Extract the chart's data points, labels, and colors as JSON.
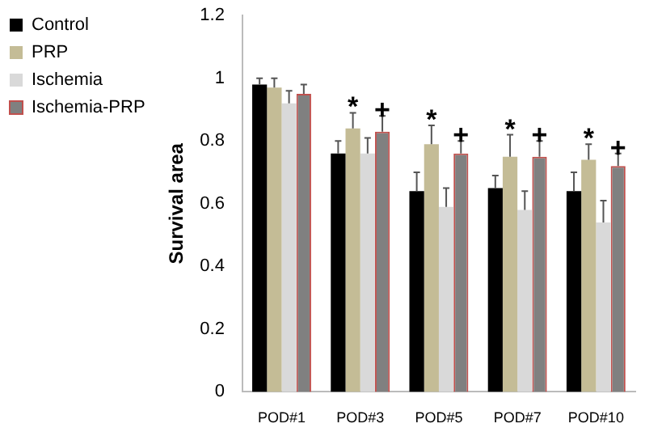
{
  "chart_data": {
    "type": "bar",
    "ylabel": "Survival area",
    "categories": [
      "POD#1",
      "POD#3",
      "POD#5",
      "POD#7",
      "POD#10"
    ],
    "series": [
      {
        "name": "Control",
        "color": "#000000",
        "values": [
          0.98,
          0.76,
          0.64,
          0.65,
          0.64
        ],
        "errors": [
          [
            0.98,
            1.0
          ],
          [
            0.76,
            0.8
          ],
          [
            0.64,
            0.7
          ],
          [
            0.65,
            0.69
          ],
          [
            0.64,
            0.7
          ]
        ]
      },
      {
        "name": "PRP",
        "color": "#c4bc96",
        "values": [
          0.97,
          0.84,
          0.79,
          0.75,
          0.74
        ],
        "errors": [
          [
            0.97,
            1.0
          ],
          [
            0.84,
            0.89
          ],
          [
            0.79,
            0.85
          ],
          [
            0.75,
            0.82
          ],
          [
            0.74,
            0.79
          ]
        ]
      },
      {
        "name": "Ischemia",
        "color": "#d9d9d9",
        "values": [
          0.92,
          0.76,
          0.59,
          0.58,
          0.54
        ],
        "errors": [
          [
            0.92,
            0.96
          ],
          [
            0.76,
            0.81
          ],
          [
            0.59,
            0.65
          ],
          [
            0.58,
            0.64
          ],
          [
            0.54,
            0.61
          ]
        ]
      },
      {
        "name": "Ischemia-PRP",
        "color": "#808080",
        "values": [
          0.95,
          0.83,
          0.76,
          0.75,
          0.72
        ],
        "errors": [
          [
            0.95,
            0.98
          ],
          [
            0.83,
            0.88
          ],
          [
            0.76,
            0.8
          ],
          [
            0.75,
            0.8
          ],
          [
            0.72,
            0.76
          ]
        ]
      }
    ],
    "ylim": [
      0,
      1.2
    ],
    "yticks": [
      0,
      0.2,
      0.4,
      0.6,
      0.8,
      1,
      1.2
    ],
    "legend": "top left",
    "annotations": [
      {
        "text": "*",
        "x": "POD#3",
        "y": 0.89
      },
      {
        "text": "+",
        "x": "POD#3",
        "y": 0.88
      },
      {
        "text": "*",
        "x": "POD#5",
        "y": 0.85
      },
      {
        "text": "+",
        "x": "POD#5",
        "y": 0.8
      },
      {
        "text": "*",
        "x": "POD#7",
        "y": 0.82
      },
      {
        "text": "+",
        "x": "POD#7",
        "y": 0.8
      },
      {
        "text": "*",
        "x": "POD#10",
        "y": 0.79
      },
      {
        "text": "+",
        "x": "POD#10",
        "y": 0.76
      }
    ]
  }
}
